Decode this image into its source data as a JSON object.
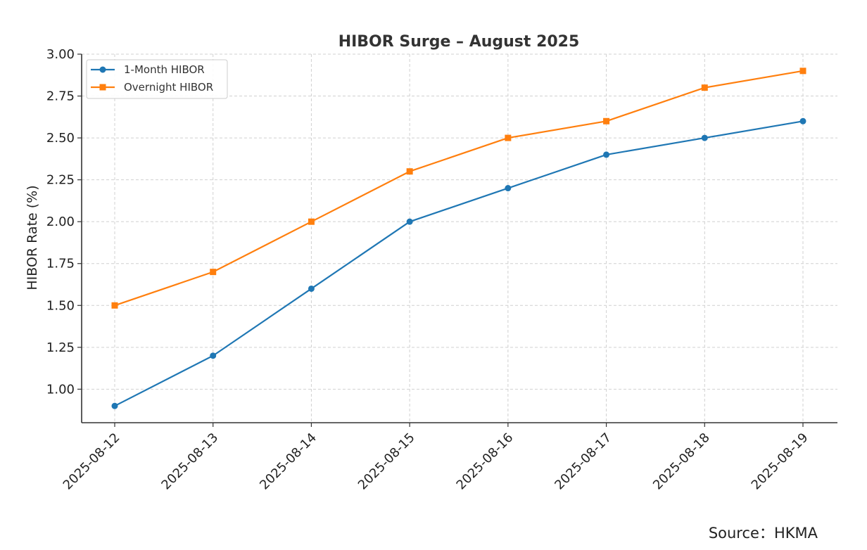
{
  "chart_data": {
    "type": "line",
    "title": "HIBOR Surge – August 2025",
    "xlabel": "",
    "ylabel": "HIBOR Rate (%)",
    "categories": [
      "2025-08-12",
      "2025-08-13",
      "2025-08-14",
      "2025-08-15",
      "2025-08-16",
      "2025-08-17",
      "2025-08-18",
      "2025-08-19"
    ],
    "yticks": [
      "1.00",
      "1.25",
      "1.50",
      "1.75",
      "2.00",
      "2.25",
      "2.50",
      "2.75",
      "3.00"
    ],
    "ylim": [
      0.8,
      3.0
    ],
    "grid": true,
    "legend_position": "top-left",
    "series": [
      {
        "name": "1-Month HIBOR",
        "color": "#1f77b4",
        "marker": "circle",
        "values": [
          0.9,
          1.2,
          1.6,
          2.0,
          2.2,
          2.4,
          2.5,
          2.6
        ]
      },
      {
        "name": "Overnight HIBOR",
        "color": "#ff7f0e",
        "marker": "square",
        "values": [
          1.5,
          1.7,
          2.0,
          2.3,
          2.5,
          2.6,
          2.8,
          2.9
        ]
      }
    ]
  },
  "source_note": "Source：HKMA"
}
